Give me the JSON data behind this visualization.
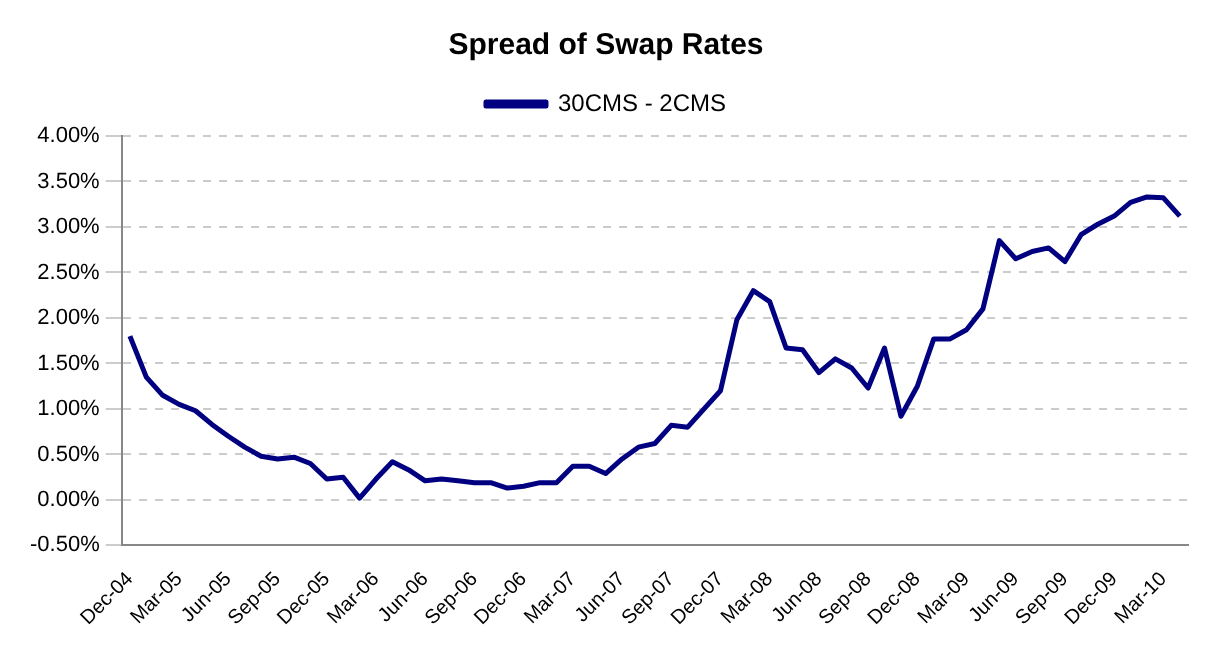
{
  "chart_data": {
    "type": "line",
    "title": "Spread of Swap Rates",
    "categories": [
      "Dec-04",
      null,
      null,
      "Mar-05",
      null,
      null,
      "Jun-05",
      null,
      null,
      "Sep-05",
      null,
      null,
      "Dec-05",
      null,
      null,
      "Mar-06",
      null,
      null,
      "Jun-06",
      null,
      null,
      "Sep-06",
      null,
      null,
      "Dec-06",
      null,
      null,
      "Mar-07",
      null,
      null,
      "Jun-07",
      null,
      null,
      "Sep-07",
      null,
      null,
      "Dec-07",
      null,
      null,
      "Mar-08",
      null,
      null,
      "Jun-08",
      null,
      null,
      "Sep-08",
      null,
      null,
      "Dec-08",
      null,
      null,
      "Mar-09",
      null,
      null,
      "Jun-09",
      null,
      null,
      "Sep-09",
      null,
      null,
      "Dec-09",
      null,
      null,
      "Mar-10",
      null
    ],
    "series": [
      {
        "name": "30CMS - 2CMS",
        "color": "#000080",
        "values": [
          1.8,
          1.35,
          1.15,
          1.05,
          0.98,
          0.83,
          0.7,
          0.58,
          0.48,
          0.45,
          0.47,
          0.4,
          0.23,
          0.25,
          0.02,
          0.23,
          0.42,
          0.33,
          0.21,
          0.23,
          0.21,
          0.19,
          0.19,
          0.13,
          0.15,
          0.19,
          0.19,
          0.37,
          0.37,
          0.29,
          0.45,
          0.58,
          0.62,
          0.82,
          0.8,
          1.0,
          1.2,
          1.98,
          2.3,
          2.18,
          1.67,
          1.65,
          1.4,
          1.55,
          1.45,
          1.23,
          1.67,
          0.92,
          1.25,
          1.77,
          1.77,
          1.87,
          2.1,
          2.85,
          2.65,
          2.73,
          2.77,
          2.62,
          2.92,
          3.03,
          3.12,
          3.27,
          3.33,
          3.32,
          3.12
        ]
      }
    ],
    "ylim": [
      -0.5,
      4
    ],
    "yticks": [
      {
        "value": -0.5,
        "label": "-0.50%"
      },
      {
        "value": 0,
        "label": "0.00%"
      },
      {
        "value": 0.5,
        "label": "0.50%"
      },
      {
        "value": 1,
        "label": "1.00%"
      },
      {
        "value": 1.5,
        "label": "1.50%"
      },
      {
        "value": 2,
        "label": "2.00%"
      },
      {
        "value": 2.5,
        "label": "2.50%"
      },
      {
        "value": 3,
        "label": "3.00%"
      },
      {
        "value": 3.5,
        "label": "3.50%"
      },
      {
        "value": 4,
        "label": "4.00%"
      }
    ],
    "grid": "y",
    "legend": "top",
    "marker": "none",
    "line_style": "solid"
  }
}
